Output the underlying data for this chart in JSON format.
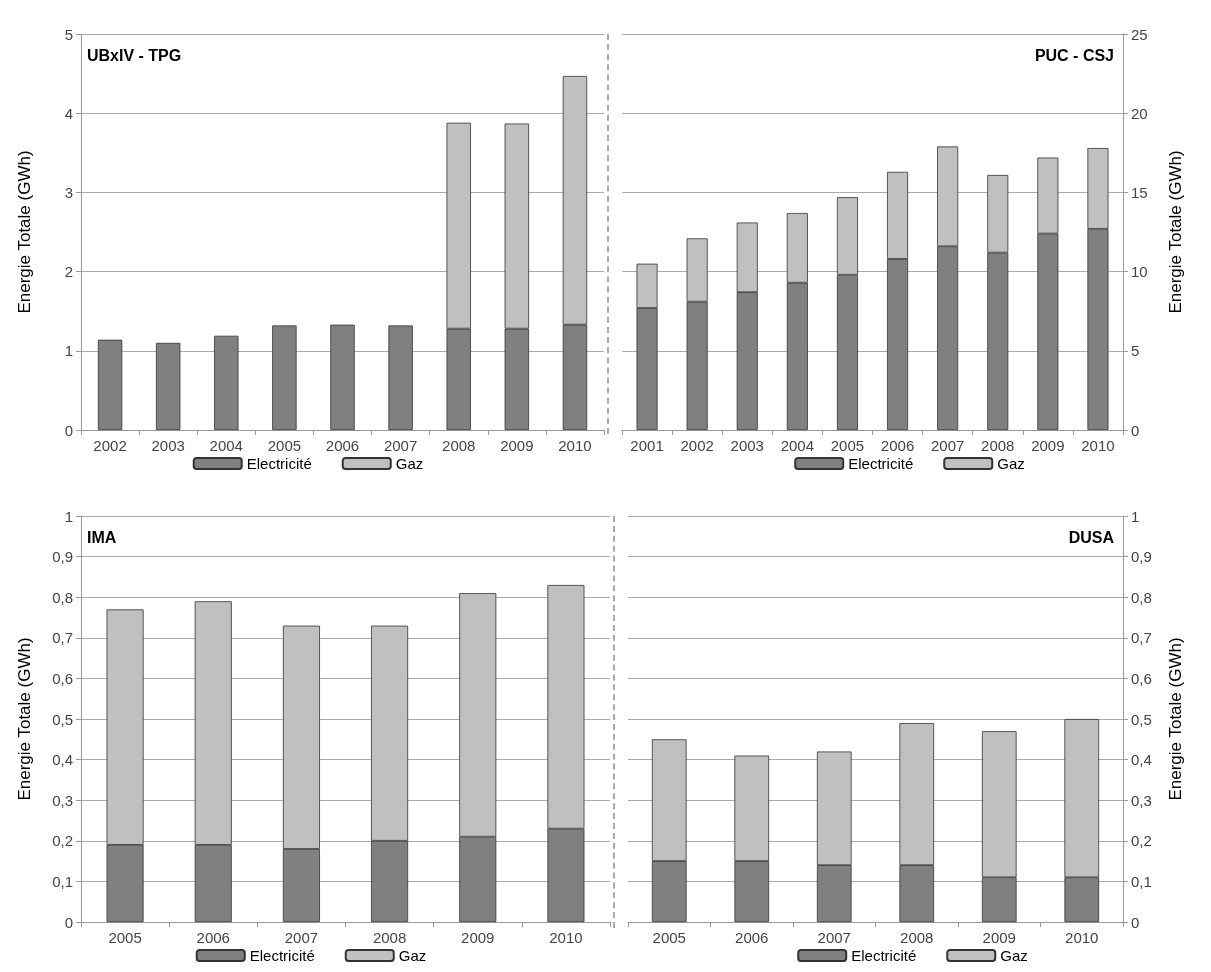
{
  "chart_data": [
    {
      "type": "bar",
      "stacked": true,
      "title": "UBxIV - TPG",
      "ylabel": "Energie Totale (GWh)",
      "categories": [
        "2002",
        "2003",
        "2004",
        "2005",
        "2006",
        "2007",
        "2008",
        "2009",
        "2010"
      ],
      "series": [
        {
          "name": "Electricité",
          "color": "#808080",
          "values": [
            1.14,
            1.1,
            1.19,
            1.32,
            1.33,
            1.32,
            1.28,
            1.28,
            1.33
          ]
        },
        {
          "name": "Gaz",
          "color": "#c0c0c0",
          "values": [
            null,
            null,
            null,
            null,
            null,
            null,
            2.6,
            2.59,
            3.14
          ]
        }
      ],
      "ylim": [
        0,
        5
      ],
      "yticks": [
        0,
        1,
        2,
        3,
        4,
        5
      ],
      "grid": "y",
      "legend": "bottom"
    },
    {
      "type": "bar",
      "stacked": true,
      "title": "PUC - CSJ",
      "y2label": "Energie Totale (GWh)",
      "categories": [
        "2001",
        "2002",
        "2003",
        "2004",
        "2005",
        "2006",
        "2007",
        "2008",
        "2009",
        "2010"
      ],
      "series": [
        {
          "name": "Electricité",
          "color": "#808080",
          "axis": "y2",
          "values": [
            7.7,
            8.1,
            8.7,
            9.3,
            9.8,
            10.8,
            11.6,
            11.2,
            12.4,
            12.7
          ]
        },
        {
          "name": "Gaz",
          "color": "#c0c0c0",
          "axis": "y2",
          "values": [
            2.8,
            4.0,
            4.4,
            4.4,
            4.9,
            5.5,
            6.3,
            4.9,
            4.8,
            5.1
          ]
        }
      ],
      "y2lim": [
        0,
        25
      ],
      "y2ticks": [
        0,
        5,
        10,
        15,
        20,
        25
      ],
      "grid": "y",
      "legend": "bottom"
    },
    {
      "type": "bar",
      "stacked": true,
      "title": "IMA",
      "ylabel": "Energie Totale (GWh)",
      "categories": [
        "2005",
        "2006",
        "2007",
        "2008",
        "2009",
        "2010"
      ],
      "series": [
        {
          "name": "Electricité",
          "color": "#808080",
          "values": [
            0.19,
            0.19,
            0.18,
            0.2,
            0.21,
            0.23
          ]
        },
        {
          "name": "Gaz",
          "color": "#c0c0c0",
          "values": [
            0.58,
            0.6,
            0.55,
            0.53,
            0.6,
            0.6
          ]
        }
      ],
      "ylim": [
        0,
        1
      ],
      "yticks": [
        0,
        {
          "value": 0.1,
          "label": "0,1"
        },
        {
          "value": 0.2,
          "label": "0,2"
        },
        {
          "value": 0.3,
          "label": "0,3"
        },
        {
          "value": 0.4,
          "label": "0,4"
        },
        {
          "value": 0.5,
          "label": "0,5"
        },
        {
          "value": 0.6,
          "label": "0,6"
        },
        {
          "value": 0.7,
          "label": "0,7"
        },
        {
          "value": 0.8,
          "label": "0,8"
        },
        {
          "value": 0.9,
          "label": "0,9"
        },
        1
      ],
      "grid": "y",
      "legend": "bottom"
    },
    {
      "type": "bar",
      "stacked": true,
      "title": "DUSA",
      "y2label": "Energie Totale (GWh)",
      "categories": [
        "2005",
        "2006",
        "2007",
        "2008",
        "2009",
        "2010"
      ],
      "series": [
        {
          "name": "Electricité",
          "color": "#808080",
          "axis": "y2",
          "values": [
            0.15,
            0.15,
            0.14,
            0.14,
            0.11,
            0.11
          ]
        },
        {
          "name": "Gaz",
          "color": "#c0c0c0",
          "axis": "y2",
          "values": [
            0.3,
            0.26,
            0.28,
            0.35,
            0.36,
            0.39
          ]
        }
      ],
      "y2lim": [
        0,
        1
      ],
      "y2ticks": [
        0,
        {
          "value": 0.1,
          "label": "0,1"
        },
        {
          "value": 0.2,
          "label": "0,2"
        },
        {
          "value": 0.3,
          "label": "0,3"
        },
        {
          "value": 0.4,
          "label": "0,4"
        },
        {
          "value": 0.5,
          "label": "0,5"
        },
        {
          "value": 0.6,
          "label": "0,6"
        },
        {
          "value": 0.7,
          "label": "0,7"
        },
        {
          "value": 0.8,
          "label": "0,8"
        },
        {
          "value": 0.9,
          "label": "0,9"
        },
        1
      ],
      "grid": "y",
      "legend": "bottom"
    }
  ]
}
